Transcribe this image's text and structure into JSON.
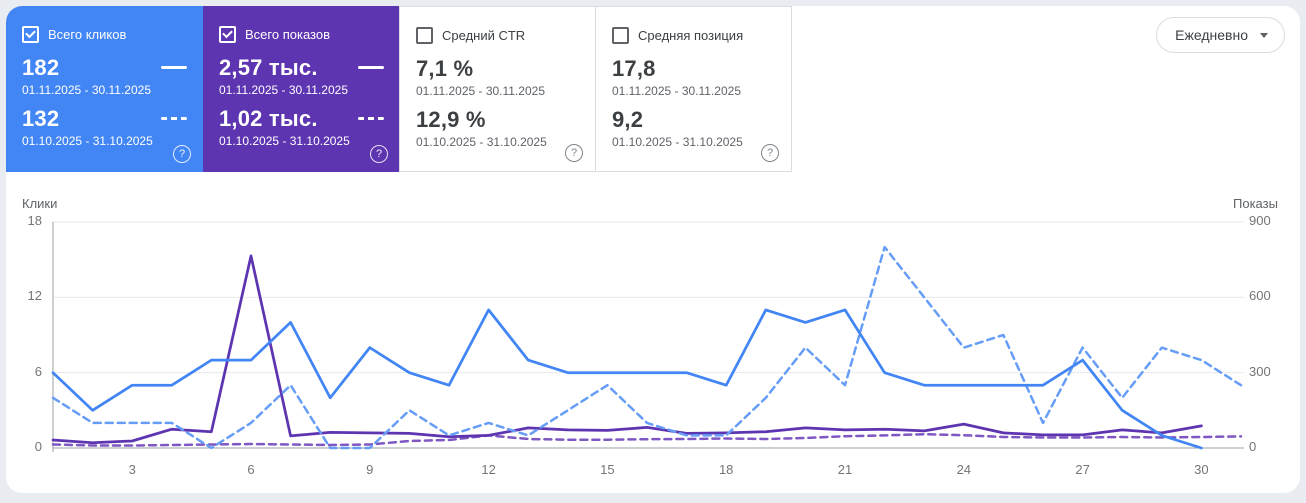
{
  "page": {
    "background": "#e9ecf1",
    "panel_background": "#ffffff"
  },
  "cards": [
    {
      "label": "Всего кликов",
      "checked": true,
      "color": "#4285f4",
      "value_current": "182",
      "range_current": "01.11.2025 - 30.11.2025",
      "value_previous": "132",
      "range_previous": "01.10.2025 - 31.10.2025"
    },
    {
      "label": "Всего показов",
      "checked": true,
      "color": "#5e35b1",
      "value_current": "2,57 тыс.",
      "range_current": "01.11.2025 - 30.11.2025",
      "value_previous": "1,02 тыс.",
      "range_previous": "01.10.2025 - 31.10.2025"
    },
    {
      "label": "Средний CTR",
      "checked": false,
      "color": "",
      "value_current": "7,1 %",
      "range_current": "01.11.2025 - 30.11.2025",
      "value_previous": "12,9 %",
      "range_previous": "01.10.2025 - 31.10.2025"
    },
    {
      "label": "Средняя позиция",
      "checked": false,
      "color": "",
      "value_current": "17,8",
      "range_current": "01.11.2025 - 30.11.2025",
      "value_previous": "9,2",
      "range_previous": "01.10.2025 - 31.10.2025"
    }
  ],
  "toolbar": {
    "granularity_label": "Ежедневно"
  },
  "chart_data": {
    "type": "line",
    "x_label_days": [
      3,
      6,
      9,
      12,
      15,
      18,
      21,
      24,
      27,
      30
    ],
    "x_range": [
      1,
      31
    ],
    "grid": true,
    "y_left": {
      "title": "Клики",
      "ticks": [
        0,
        6,
        12,
        18
      ],
      "max": 18
    },
    "y_right": {
      "title": "Показы",
      "ticks": [
        0,
        300,
        600,
        900
      ],
      "max": 900
    },
    "series": [
      {
        "name": "Клики 01.11.2025 - 30.11.2025",
        "axis": "left",
        "style": "solid",
        "color": "#4285f4",
        "values": [
          6,
          3,
          5,
          5,
          7,
          7,
          10,
          4,
          8,
          6,
          5,
          11,
          7,
          6,
          6,
          6,
          6,
          5,
          11,
          10,
          11,
          6,
          5,
          5,
          5,
          5,
          7,
          3,
          1,
          0
        ]
      },
      {
        "name": "Клики 01.10.2025 - 31.10.2025",
        "axis": "left",
        "style": "dashed",
        "color": "#669df6",
        "values": [
          4,
          2,
          2,
          2,
          0,
          2,
          5,
          0,
          0,
          3,
          1,
          2,
          1,
          3,
          5,
          2,
          1,
          1,
          4,
          8,
          5,
          16,
          12,
          8,
          9,
          2,
          8,
          4,
          8,
          7,
          5
        ]
      },
      {
        "name": "Показы 01.11.2025 - 30.11.2025",
        "axis": "right",
        "style": "solid",
        "color": "#5e35b1",
        "values": [
          32,
          21,
          28,
          75,
          65,
          765,
          48,
          62,
          60,
          58,
          45,
          50,
          80,
          72,
          70,
          82,
          58,
          60,
          65,
          80,
          72,
          75,
          68,
          95,
          60,
          52,
          52,
          72,
          60,
          88
        ]
      },
      {
        "name": "Показы 01.10.2025 - 31.10.2025",
        "axis": "right",
        "style": "dashed",
        "color": "#7e57c2",
        "values": [
          14,
          10,
          10,
          12,
          14,
          16,
          14,
          12,
          14,
          28,
          32,
          50,
          36,
          33,
          33,
          35,
          36,
          38,
          36,
          40,
          47,
          50,
          55,
          51,
          44,
          42,
          42,
          44,
          42,
          44,
          46
        ]
      }
    ]
  }
}
